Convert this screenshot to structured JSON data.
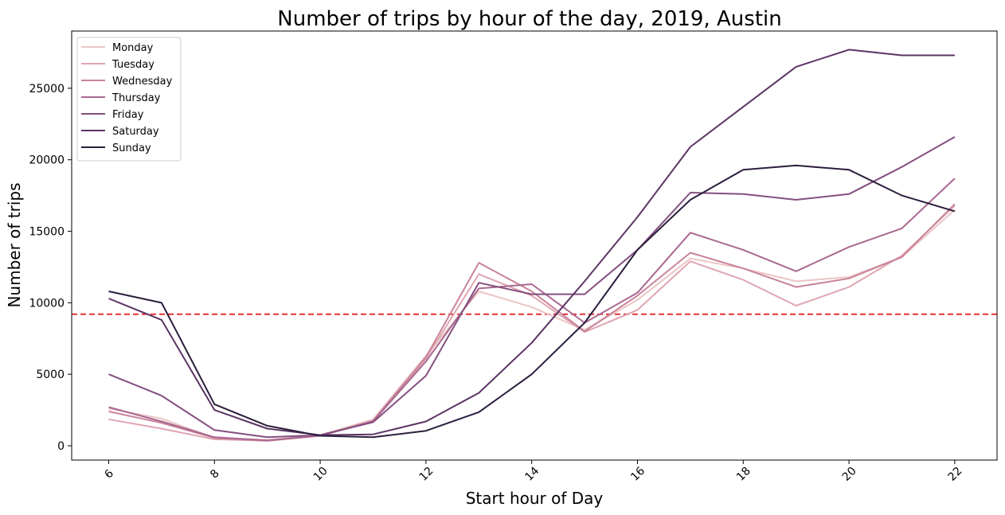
{
  "chart_data": {
    "type": "line",
    "title": "Number of trips by hour of the day, 2019, Austin",
    "xlabel": "Start hour of Day",
    "ylabel": "Number of trips",
    "x": [
      6,
      7,
      8,
      9,
      10,
      11,
      12,
      13,
      14,
      15,
      16,
      17,
      18,
      19,
      20,
      21,
      22
    ],
    "xlim": [
      5.3,
      22.8
    ],
    "ylim": [
      -1000,
      29000
    ],
    "x_ticks": [
      6,
      8,
      10,
      12,
      14,
      16,
      18,
      20,
      22
    ],
    "y_ticks": [
      0,
      5000,
      10000,
      15000,
      20000,
      25000
    ],
    "grid": false,
    "legend_position": "top-left",
    "reference_line": {
      "y": 9200,
      "color": "#e41a1c",
      "style": "dashed"
    },
    "series": [
      {
        "name": "Monday",
        "color": "#ecc5c5",
        "values": [
          2600,
          1900,
          550,
          400,
          750,
          1850,
          6300,
          10800,
          9700,
          8100,
          10200,
          13100,
          12400,
          11500,
          11800,
          13200,
          16500
        ]
      },
      {
        "name": "Tuesday",
        "color": "#dfa5b0",
        "values": [
          1850,
          1200,
          450,
          350,
          700,
          1700,
          6100,
          12000,
          10500,
          7950,
          9500,
          12900,
          11600,
          9800,
          11100,
          13300,
          16800
        ]
      },
      {
        "name": "Wednesday",
        "color": "#c9839a",
        "values": [
          2400,
          1600,
          550,
          350,
          700,
          1750,
          6200,
          12800,
          10800,
          8000,
          10500,
          13500,
          12400,
          11100,
          11700,
          13200,
          16900
        ]
      },
      {
        "name": "Thursday",
        "color": "#a96890",
        "values": [
          2700,
          1700,
          600,
          380,
          720,
          1700,
          5900,
          11000,
          11300,
          8600,
          10700,
          14900,
          13700,
          12200,
          13900,
          15200,
          18700
        ]
      },
      {
        "name": "Friday",
        "color": "#844f7f",
        "values": [
          5000,
          3500,
          1100,
          600,
          750,
          1650,
          4900,
          11400,
          10600,
          10600,
          13700,
          17700,
          17600,
          17200,
          17600,
          19500,
          21600
        ]
      },
      {
        "name": "Saturday",
        "color": "#5b3464",
        "values": [
          10300,
          8800,
          2500,
          1200,
          750,
          800,
          1700,
          3700,
          7200,
          11500,
          16000,
          20900,
          23700,
          26500,
          27700,
          27300,
          27300
        ]
      },
      {
        "name": "Sunday",
        "color": "#2c1e3d",
        "values": [
          10800,
          10000,
          2900,
          1400,
          700,
          600,
          1050,
          2350,
          5000,
          8600,
          13700,
          17200,
          19300,
          19600,
          19300,
          17500,
          16400
        ]
      }
    ]
  }
}
